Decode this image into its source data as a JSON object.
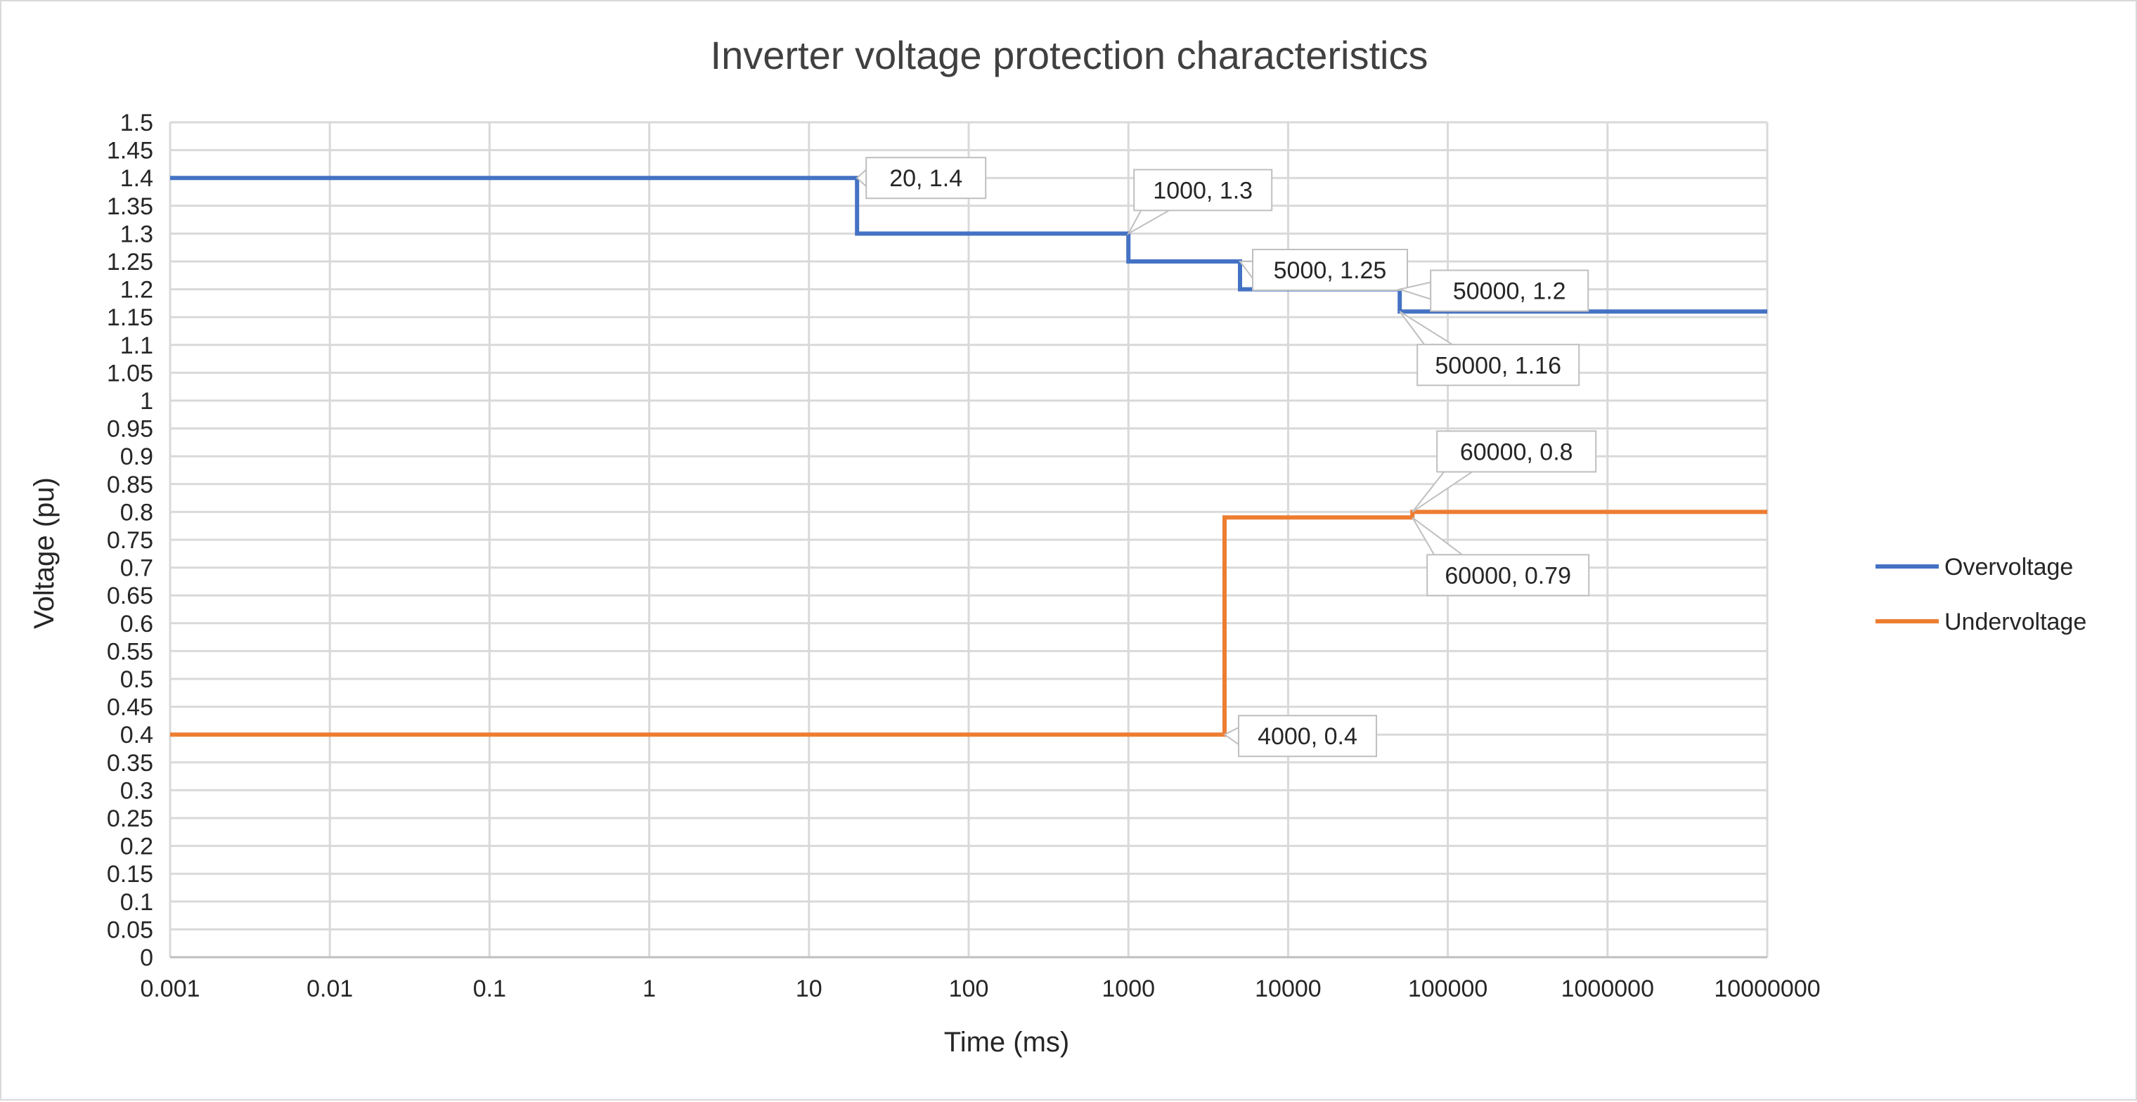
{
  "chart_data": {
    "type": "line",
    "title": "Inverter voltage protection characteristics",
    "xlabel": "Time (ms)",
    "ylabel": "Voltage (pu)",
    "x_scale": "log",
    "xlim": [
      0.001,
      10000000
    ],
    "ylim": [
      0,
      1.5
    ],
    "x_ticks": [
      "0.001",
      "0.01",
      "0.1",
      "1",
      "10",
      "100",
      "1000",
      "10000",
      "100000",
      "1000000",
      "10000000"
    ],
    "y_ticks": [
      "0",
      "0.05",
      "0.1",
      "0.15",
      "0.2",
      "0.25",
      "0.3",
      "0.35",
      "0.4",
      "0.45",
      "0.5",
      "0.55",
      "0.6",
      "0.65",
      "0.7",
      "0.75",
      "0.8",
      "0.85",
      "0.9",
      "0.95",
      "1",
      "1.05",
      "1.1",
      "1.15",
      "1.2",
      "1.25",
      "1.3",
      "1.35",
      "1.4",
      "1.45",
      "1.5"
    ],
    "grid": true,
    "legend_position": "right",
    "series": [
      {
        "name": "Overvoltage",
        "color": "#4472c4",
        "points": [
          [
            0.001,
            1.4
          ],
          [
            20,
            1.4
          ],
          [
            20,
            1.3
          ],
          [
            1000,
            1.3
          ],
          [
            1000,
            1.25
          ],
          [
            5000,
            1.25
          ],
          [
            5000,
            1.2
          ],
          [
            50000,
            1.2
          ],
          [
            50000,
            1.16
          ],
          [
            10000000,
            1.16
          ]
        ]
      },
      {
        "name": "Undervoltage",
        "color": "#ed7d31",
        "points": [
          [
            0.001,
            0.4
          ],
          [
            4000,
            0.4
          ],
          [
            4000,
            0.79
          ],
          [
            60000,
            0.79
          ],
          [
            60000,
            0.8
          ],
          [
            10000000,
            0.8
          ]
        ]
      }
    ],
    "annotations": [
      {
        "text": "20, 1.4",
        "x": 20,
        "y": 1.4
      },
      {
        "text": "1000, 1.3",
        "x": 1000,
        "y": 1.3
      },
      {
        "text": "5000, 1.25",
        "x": 5000,
        "y": 1.25
      },
      {
        "text": "50000, 1.2",
        "x": 50000,
        "y": 1.2
      },
      {
        "text": "50000, 1.16",
        "x": 50000,
        "y": 1.16
      },
      {
        "text": "60000, 0.8",
        "x": 60000,
        "y": 0.8
      },
      {
        "text": "60000, 0.79",
        "x": 60000,
        "y": 0.79
      },
      {
        "text": "4000, 0.4",
        "x": 4000,
        "y": 0.4
      }
    ]
  }
}
